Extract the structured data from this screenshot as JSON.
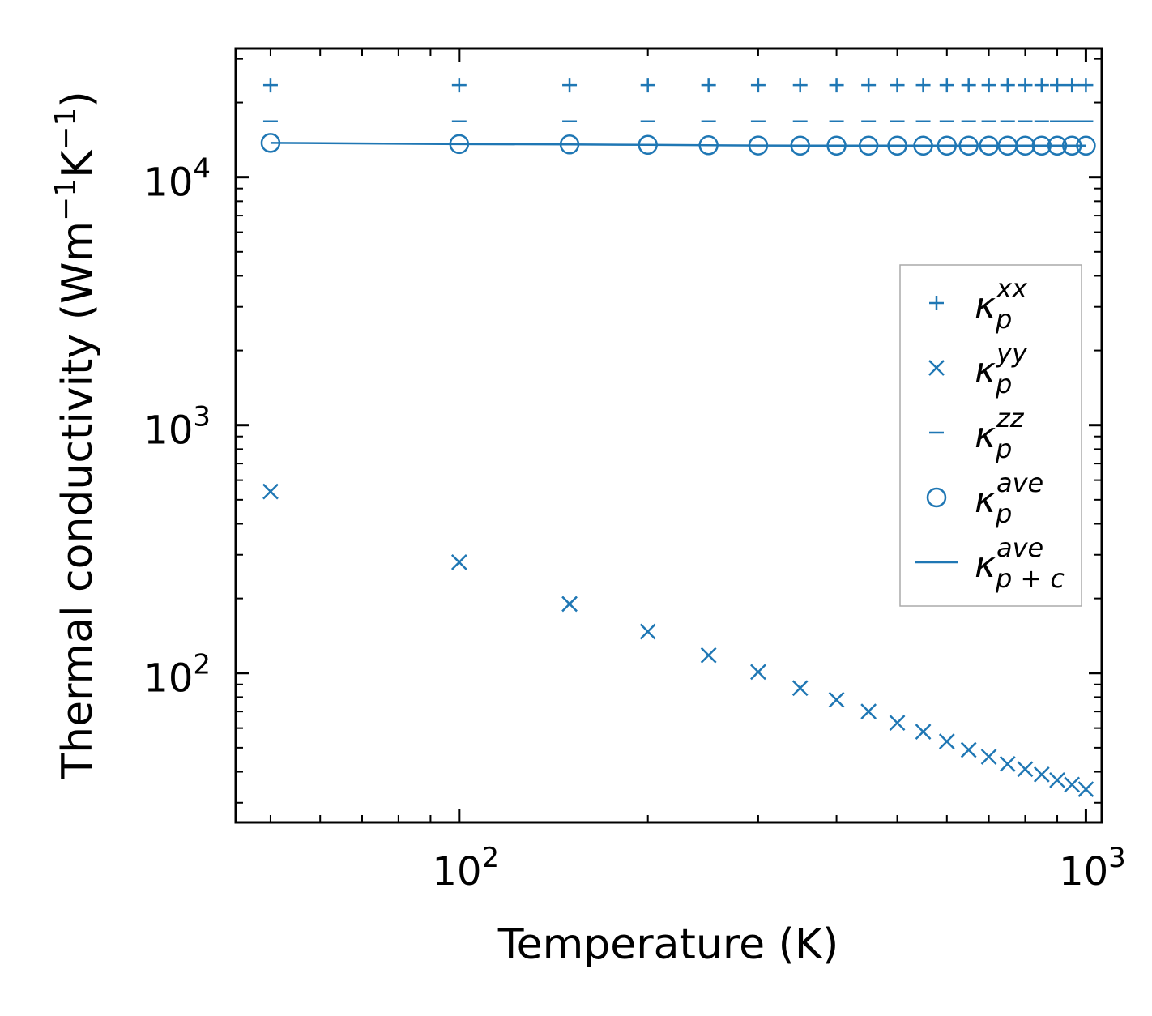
{
  "chart_data": {
    "type": "scatter",
    "title": "",
    "xlabel": "Temperature (K)",
    "ylabel": {
      "main": "Thermal conductivity (Wm",
      "exp1": "−1",
      "mid": "K",
      "exp2": "−1",
      "close": ")"
    },
    "xscale": "log",
    "yscale": "log",
    "xlim": [
      44,
      1060
    ],
    "ylim": [
      25,
      33000
    ],
    "xticks": [
      {
        "value": 100,
        "base": "10",
        "exp": "2"
      },
      {
        "value": 1000,
        "base": "10",
        "exp": "3"
      }
    ],
    "yticks": [
      {
        "value": 100,
        "base": "10",
        "exp": "2"
      },
      {
        "value": 1000,
        "base": "10",
        "exp": "3"
      },
      {
        "value": 10000,
        "base": "10",
        "exp": "4"
      }
    ],
    "x": [
      50,
      100,
      150,
      200,
      250,
      300,
      350,
      400,
      450,
      500,
      550,
      600,
      650,
      700,
      750,
      800,
      850,
      900,
      950,
      1000
    ],
    "color": "#1f77b4",
    "series": [
      {
        "key": "xx",
        "name": "κ_p^xx",
        "marker": "plus",
        "values": [
          23500,
          23500,
          23500,
          23500,
          23500,
          23500,
          23500,
          23500,
          23500,
          23500,
          23500,
          23500,
          23500,
          23500,
          23500,
          23500,
          23500,
          23500,
          23500,
          23500
        ]
      },
      {
        "key": "yy",
        "name": "κ_p^yy",
        "marker": "x",
        "values": [
          540,
          280,
          190,
          147,
          118,
          101,
          87,
          78,
          70,
          63,
          58,
          53,
          49,
          46,
          43,
          41,
          39,
          37,
          35.5,
          34
        ]
      },
      {
        "key": "zz",
        "name": "κ_p^zz",
        "marker": "minus",
        "values": [
          16800,
          16800,
          16800,
          16800,
          16800,
          16800,
          16800,
          16800,
          16800,
          16800,
          16800,
          16800,
          16800,
          16800,
          16800,
          16800,
          16800,
          16800,
          16800,
          16800
        ]
      },
      {
        "key": "ave",
        "name": "κ_p^ave",
        "marker": "circle",
        "values": [
          13750,
          13600,
          13550,
          13500,
          13450,
          13420,
          13400,
          13400,
          13400,
          13400,
          13400,
          13400,
          13400,
          13400,
          13400,
          13400,
          13400,
          13400,
          13400,
          13400
        ]
      },
      {
        "key": "ave_pc",
        "name": "κ_p+c^ave",
        "marker": "line",
        "values": [
          13750,
          13600,
          13550,
          13500,
          13450,
          13420,
          13400,
          13400,
          13400,
          13400,
          13400,
          13400,
          13400,
          13400,
          13400,
          13400,
          13400,
          13400,
          13400,
          13400
        ]
      }
    ],
    "legend": {
      "position": "center-right",
      "entries": [
        {
          "marker": "plus",
          "kappa": "κ",
          "sub": "p",
          "sup": "xx"
        },
        {
          "marker": "x",
          "kappa": "κ",
          "sub": "p",
          "sup": "yy"
        },
        {
          "marker": "minus",
          "kappa": "κ",
          "sub": "p",
          "sup": "zz"
        },
        {
          "marker": "circle",
          "kappa": "κ",
          "sub": "p",
          "sup": "ave"
        },
        {
          "marker": "line",
          "kappa": "κ",
          "sub": "p + c",
          "sup": "ave"
        }
      ]
    }
  }
}
